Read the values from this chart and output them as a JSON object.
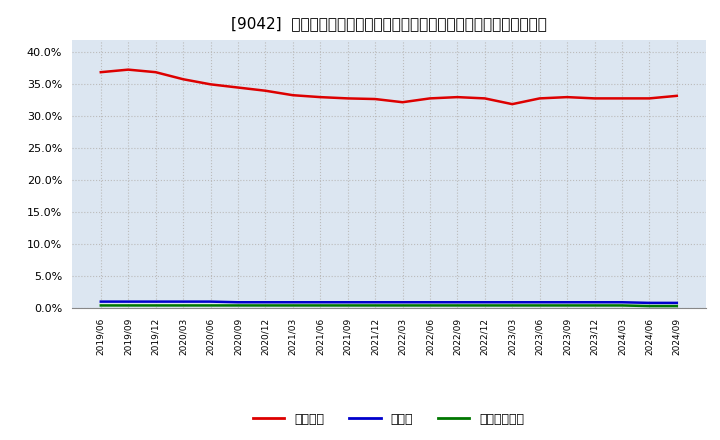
{
  "title": "[9042]  自己資本、のれん、繰延税金資産の総資産に対する比率の推移",
  "x_labels": [
    "2019/06",
    "2019/09",
    "2019/12",
    "2020/03",
    "2020/06",
    "2020/09",
    "2020/12",
    "2021/03",
    "2021/06",
    "2021/09",
    "2021/12",
    "2022/03",
    "2022/06",
    "2022/09",
    "2022/12",
    "2023/03",
    "2023/06",
    "2023/09",
    "2023/12",
    "2024/03",
    "2024/06",
    "2024/09"
  ],
  "equity": [
    0.369,
    0.373,
    0.369,
    0.358,
    0.35,
    0.345,
    0.34,
    0.333,
    0.33,
    0.328,
    0.327,
    0.322,
    0.328,
    0.33,
    0.328,
    0.319,
    0.328,
    0.33,
    0.328,
    0.328,
    0.328,
    0.332
  ],
  "noren": [
    0.01,
    0.01,
    0.01,
    0.01,
    0.01,
    0.009,
    0.009,
    0.009,
    0.009,
    0.009,
    0.009,
    0.009,
    0.009,
    0.009,
    0.009,
    0.009,
    0.009,
    0.009,
    0.009,
    0.009,
    0.008,
    0.008
  ],
  "deferred_tax": [
    0.004,
    0.004,
    0.004,
    0.004,
    0.004,
    0.004,
    0.004,
    0.004,
    0.004,
    0.004,
    0.004,
    0.004,
    0.004,
    0.004,
    0.004,
    0.004,
    0.004,
    0.004,
    0.004,
    0.004,
    0.003,
    0.003
  ],
  "equity_color": "#dd0000",
  "noren_color": "#0000cc",
  "deferred_color": "#007700",
  "ylim": [
    0.0,
    0.42
  ],
  "yticks": [
    0.0,
    0.05,
    0.1,
    0.15,
    0.2,
    0.25,
    0.3,
    0.35,
    0.4
  ],
  "bg_color": "#ffffff",
  "plot_bg_color": "#dce6f1",
  "grid_color": "#bbbbbb",
  "legend_labels": [
    "自己資本",
    "のれん",
    "繰延税金資産"
  ]
}
